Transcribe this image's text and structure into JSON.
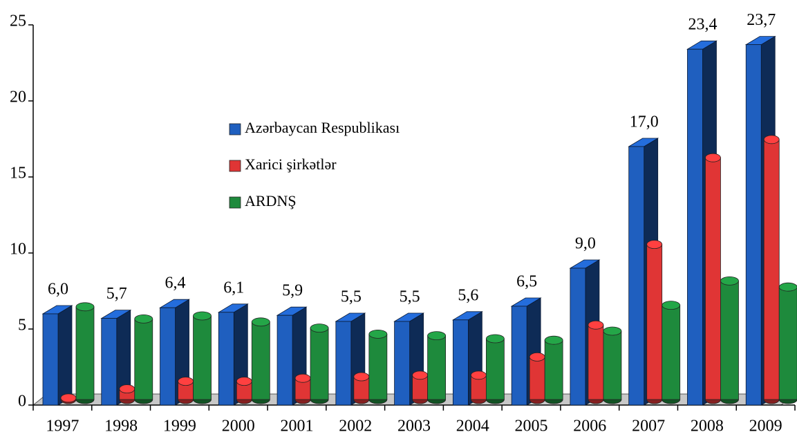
{
  "chart_data": {
    "type": "bar3d",
    "categories": [
      "1997",
      "1998",
      "1999",
      "2000",
      "2001",
      "2002",
      "2003",
      "2004",
      "2005",
      "2006",
      "2007",
      "2008",
      "2009"
    ],
    "series": [
      {
        "name": "Azərbaycan Respublikası",
        "color": "#1f5fbf",
        "shape": "box",
        "values": [
          6.0,
          5.7,
          6.4,
          6.1,
          5.9,
          5.5,
          5.5,
          5.6,
          6.5,
          9.0,
          17.0,
          23.4,
          23.7
        ],
        "value_labels": [
          "6,0",
          "5,7",
          "6,4",
          "6,1",
          "5,9",
          "5,5",
          "5,5",
          "5,6",
          "6,5",
          "9,0",
          "17,0",
          "23,4",
          "23,7"
        ]
      },
      {
        "name": "Xarici şirkətlər",
        "color": "#e03535",
        "shape": "cylinder",
        "values": [
          0.1,
          0.7,
          1.2,
          1.2,
          1.4,
          1.5,
          1.6,
          1.6,
          2.8,
          4.9,
          10.2,
          15.9,
          17.1
        ]
      },
      {
        "name": "ARDNŞ",
        "color": "#1e8a3c",
        "shape": "cylinder",
        "values": [
          6.1,
          5.3,
          5.5,
          5.1,
          4.7,
          4.3,
          4.2,
          4.0,
          3.9,
          4.5,
          6.2,
          7.8,
          7.4
        ]
      }
    ],
    "ylim": [
      0,
      25
    ],
    "yticks": [
      0,
      5,
      10,
      15,
      20,
      25
    ]
  }
}
